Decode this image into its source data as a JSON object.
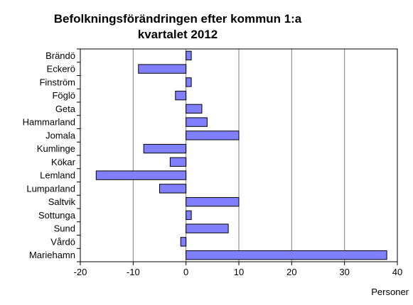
{
  "chart_data": {
    "type": "bar",
    "orientation": "horizontal",
    "title_line1": "Befolkningsförändringen efter kommun 1:a",
    "title_line2": "kvartalet 2012",
    "xlabel": "Personer",
    "ylabel": "",
    "categories": [
      "Brändö",
      "Eckerö",
      "Finström",
      "Föglö",
      "Geta",
      "Hammarland",
      "Jomala",
      "Kumlinge",
      "Kökar",
      "Lemland",
      "Lumparland",
      "Saltvik",
      "Sottunga",
      "Sund",
      "Vårdö",
      "Mariehamn"
    ],
    "values": [
      1,
      -9,
      1,
      -2,
      3,
      4,
      10,
      -8,
      -3,
      -17,
      -5,
      10,
      1,
      8,
      -1,
      38
    ],
    "xlim": [
      -20,
      40
    ],
    "xticks": [
      -20,
      -10,
      0,
      10,
      20,
      30,
      40
    ],
    "grid": true,
    "legend": "none",
    "bar_color": "#8080ff",
    "bar_edge_color": "#000000"
  }
}
